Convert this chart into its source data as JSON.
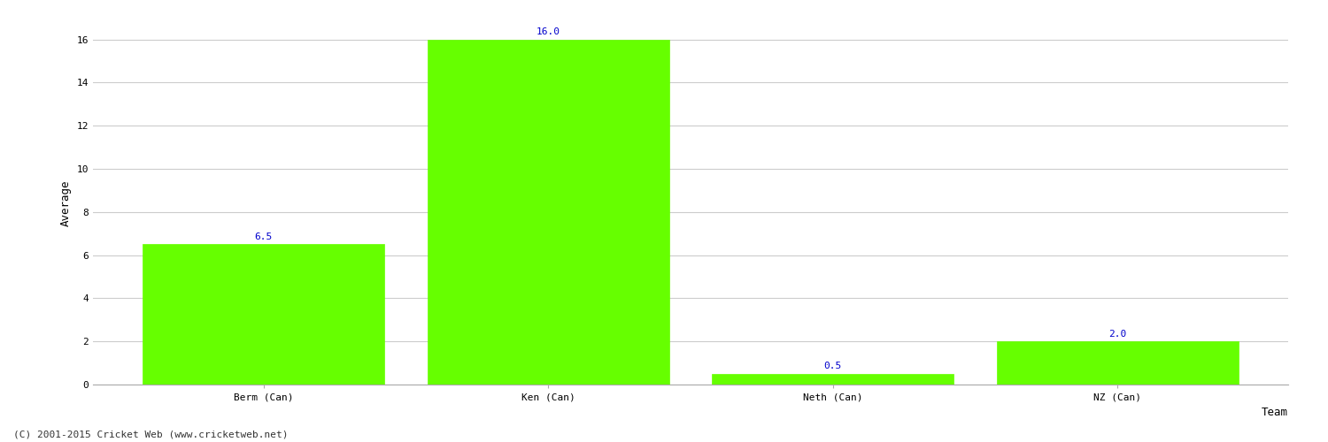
{
  "categories": [
    "Berm (Can)",
    "Ken (Can)",
    "Neth (Can)",
    "NZ (Can)"
  ],
  "values": [
    6.5,
    16.0,
    0.5,
    2.0
  ],
  "bar_color": "#66ff00",
  "bar_edge_color": "#66ff00",
  "xlabel": "Team",
  "ylabel": "Average",
  "ylim": [
    0,
    16.8
  ],
  "yticks": [
    0,
    2,
    4,
    6,
    8,
    10,
    12,
    14,
    16
  ],
  "label_color": "#0000cc",
  "label_fontsize": 8,
  "xlabel_fontsize": 9,
  "ylabel_fontsize": 9,
  "tick_fontsize": 8,
  "grid_color": "#cccccc",
  "background_color": "#ffffff",
  "footer_text": "(C) 2001-2015 Cricket Web (www.cricketweb.net)",
  "footer_fontsize": 8,
  "footer_color": "#333333",
  "bar_width": 0.85
}
